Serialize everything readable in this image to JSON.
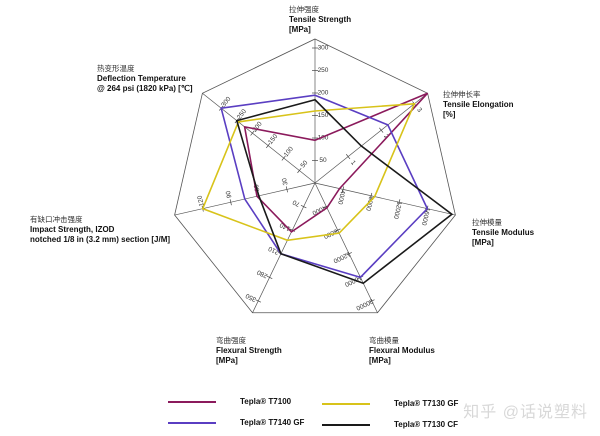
{
  "chart_data": {
    "type": "radar",
    "title": "",
    "center": [
      315,
      183
    ],
    "radius": 144,
    "axes": [
      {
        "key": "tensile_strength",
        "label_cn": "拉伸强度",
        "label_en": "Tensile Strength",
        "unit": "[MPa]",
        "ticks": [
          50,
          100,
          150,
          200,
          250,
          300
        ],
        "max": 320
      },
      {
        "key": "tensile_elongation",
        "label_cn": "拉伸伸长率",
        "label_en": "Tensile Elongation",
        "unit": "[%]",
        "ticks": [
          1,
          2,
          3
        ],
        "max": 3.4
      },
      {
        "key": "tensile_modulus",
        "label_cn": "拉伸模量",
        "label_en": "Tensile Modulus",
        "unit": "[MPa]",
        "ticks": [
          4000,
          8000,
          12000,
          16000
        ],
        "max": 20000
      },
      {
        "key": "flexural_modulus",
        "label_cn": "弯曲模量",
        "label_en": "Flexural Modulus",
        "unit": "[MPa]",
        "ticks": [
          4000,
          8000,
          12000,
          16000,
          20000
        ],
        "max": 22000
      },
      {
        "key": "flexural_strength",
        "label_cn": "弯曲强度",
        "label_en": "Flexural Strength",
        "unit": "[MPa]",
        "ticks": [
          70,
          140,
          210,
          280,
          350
        ],
        "max": 385
      },
      {
        "key": "impact_strength",
        "label_cn": "有缺口冲击强度",
        "label_en": "Impact Strength, IZOD",
        "label_en2": "notched 1/8 in (3.2 mm) section [J/M]",
        "unit": "",
        "ticks": [
          30,
          60,
          90,
          120
        ],
        "max": 150
      },
      {
        "key": "deflection_temp",
        "label_cn": "热变形温度",
        "label_en": "Deflection Temperature",
        "label_en2": "@ 264 psi (1820 kPa) [℃]",
        "unit": "",
        "ticks": [
          50,
          100,
          150,
          200,
          250,
          300
        ],
        "max": 360
      }
    ],
    "series": [
      {
        "name": "Tepla® T7100",
        "color": "#8B1A5C",
        "values": [
          95,
          3.4,
          3500,
          4200,
          145,
          62,
          225
        ]
      },
      {
        "name": "Tepla® T7140 GF",
        "color": "#5A3EC2",
        "values": [
          195,
          2.2,
          16000,
          16000,
          210,
          75,
          300
        ]
      },
      {
        "name": "Tepla® T7130 GF",
        "color": "#D8C31A",
        "values": [
          160,
          3.0,
          8500,
          8500,
          170,
          120,
          245
        ]
      },
      {
        "name": "Tepla® T7130 CF",
        "color": "#1A1A1A",
        "values": [
          185,
          1.4,
          19500,
          17000,
          210,
          60,
          250
        ]
      }
    ],
    "legend_position": "bottom"
  },
  "legend": [
    {
      "label": "Tepla® T7100",
      "color": "#8B1A5C"
    },
    {
      "label": "Tepla® T7140 GF",
      "color": "#5A3EC2"
    },
    {
      "label": "Tepla® T7130 GF",
      "color": "#D8C31A"
    },
    {
      "label": "Tepla® T7130 CF",
      "color": "#1A1A1A"
    }
  ],
  "watermark": "知乎 @话说塑料"
}
